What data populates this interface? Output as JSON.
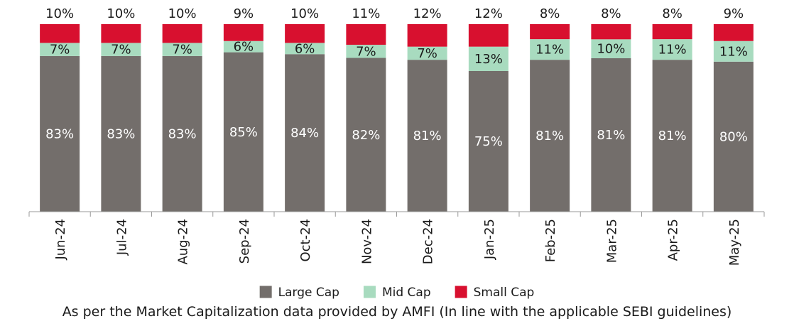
{
  "chart_data": {
    "type": "bar",
    "stacked": true,
    "categories": [
      "Jun-24",
      "Jul-24",
      "Aug-24",
      "Sep-24",
      "Oct-24",
      "Nov-24",
      "Dec-24",
      "Jan-25",
      "Feb-25",
      "Mar-25",
      "Apr-25",
      "May-25"
    ],
    "series": [
      {
        "name": "Large Cap",
        "color": "#736e6b",
        "label_color": "#ffffff",
        "values": [
          83,
          83,
          83,
          85,
          84,
          82,
          81,
          75,
          81,
          81,
          81,
          80
        ],
        "labels": [
          "83%",
          "83%",
          "83%",
          "85%",
          "84%",
          "82%",
          "81%",
          "75%",
          "81%",
          "81%",
          "81%",
          "80%"
        ]
      },
      {
        "name": "Mid Cap",
        "color": "#a8dbbf",
        "label_color": "#1a1a1a",
        "values": [
          7,
          7,
          7,
          6,
          6,
          7,
          7,
          13,
          11,
          10,
          11,
          11
        ],
        "labels": [
          "7%",
          "7%",
          "7%",
          "6%",
          "6%",
          "7%",
          "7%",
          "13%",
          "11%",
          "10%",
          "11%",
          "11%"
        ]
      },
      {
        "name": "Small Cap",
        "color": "#d8102f",
        "label_color": "#1a1a1a",
        "values": [
          10,
          10,
          10,
          9,
          10,
          11,
          12,
          12,
          8,
          8,
          8,
          9
        ],
        "labels": [
          "10%",
          "10%",
          "10%",
          "9%",
          "10%",
          "11%",
          "12%",
          "12%",
          "8%",
          "8%",
          "8%",
          "9%"
        ]
      }
    ],
    "ylim": [
      0,
      100
    ],
    "legend_position": "bottom",
    "grid": false
  },
  "footnote": "As per the Market Capitalization data provided by AMFI (In line with the applicable SEBI guidelines)"
}
